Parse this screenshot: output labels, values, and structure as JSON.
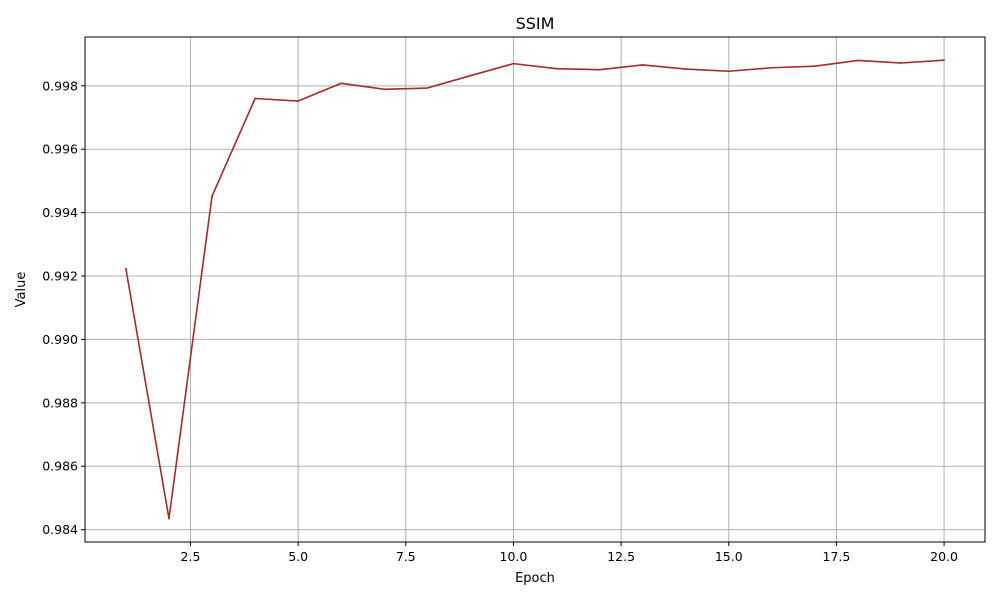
{
  "chart_data": {
    "type": "line",
    "title": "SSIM",
    "xlabel": "Epoch",
    "ylabel": "Value",
    "xlim": [
      0.05,
      20.95
    ],
    "ylim": [
      0.98361,
      0.99954
    ],
    "x_ticks": [
      2.5,
      5.0,
      7.5,
      10.0,
      12.5,
      15.0,
      17.5,
      20.0
    ],
    "x_tick_labels": [
      "2.5",
      "5.0",
      "7.5",
      "10.0",
      "12.5",
      "15.0",
      "17.5",
      "20.0"
    ],
    "y_ticks": [
      0.984,
      0.986,
      0.988,
      0.99,
      0.992,
      0.994,
      0.996,
      0.998
    ],
    "y_tick_labels": [
      "0.984",
      "0.986",
      "0.988",
      "0.990",
      "0.992",
      "0.994",
      "0.996",
      "0.998"
    ],
    "grid": true,
    "series": [
      {
        "color": "#a52a2a",
        "x": [
          1,
          2,
          3,
          4,
          5,
          6,
          7,
          8,
          9,
          10,
          11,
          12,
          13,
          14,
          15,
          16,
          17,
          18,
          19,
          20
        ],
        "values": [
          0.99223,
          0.98435,
          0.99452,
          0.9976,
          0.99752,
          0.99808,
          0.99789,
          0.99793,
          0.99832,
          0.9987,
          0.99854,
          0.99851,
          0.99866,
          0.99853,
          0.99846,
          0.99857,
          0.99862,
          0.9988,
          0.99872,
          0.99881
        ]
      }
    ]
  }
}
